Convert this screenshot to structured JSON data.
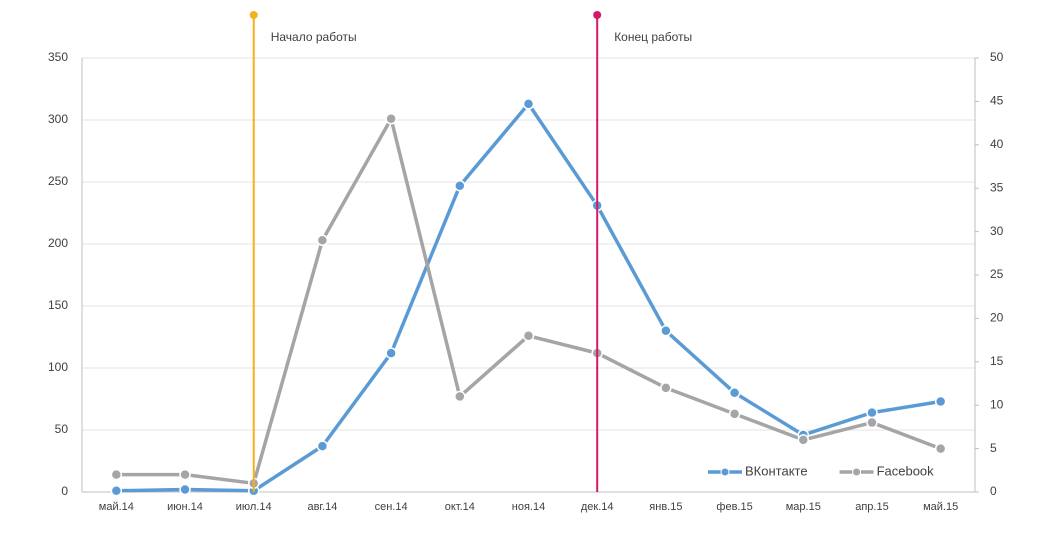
{
  "chart_data": {
    "type": "line",
    "categories": [
      "май.14",
      "июн.14",
      "июл.14",
      "авг.14",
      "сен.14",
      "окт.14",
      "ноя.14",
      "дек.14",
      "янв.15",
      "фев.15",
      "мар.15",
      "апр.15",
      "май.15"
    ],
    "series": [
      {
        "name": "ВКонтакте",
        "color": "#5b9bd5",
        "values": [
          1,
          2,
          1,
          37,
          112,
          247,
          313,
          231,
          130,
          80,
          46,
          64,
          73
        ]
      },
      {
        "name": "Facebook",
        "color": "#a5a5a5",
        "axis": "y2",
        "values": [
          2,
          2,
          1,
          29,
          43,
          11,
          18,
          16,
          12,
          9,
          6,
          8,
          5
        ]
      }
    ],
    "ylim": [
      0,
      350
    ],
    "yticks": [
      0,
      50,
      100,
      150,
      200,
      250,
      300,
      350
    ],
    "y2lim": [
      0,
      50
    ],
    "y2ticks": [
      0,
      5,
      10,
      15,
      20,
      25,
      30,
      35,
      40,
      45,
      50
    ],
    "grid": true,
    "legend": "bottom-right",
    "annotations": [
      {
        "text": "Начало работы",
        "category": "июл.14",
        "color": "#f2b21b"
      },
      {
        "text": "Конец работы",
        "category": "дек.14",
        "color": "#d6186a"
      }
    ]
  }
}
